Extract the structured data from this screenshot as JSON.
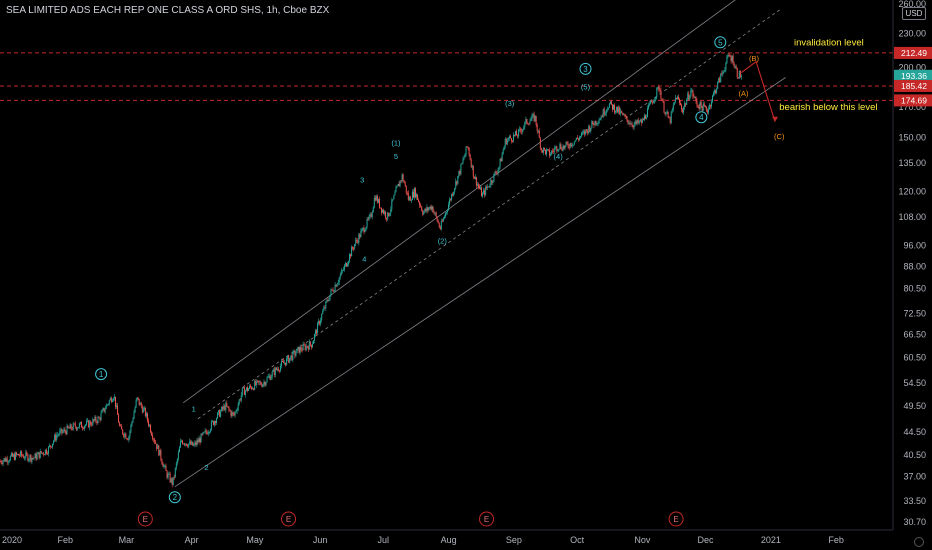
{
  "header": {
    "title": "SEA LIMITED ADS EACH REP ONE CLASS A ORD SHS, 1h, Cboe BZX"
  },
  "currency": "USD",
  "colors": {
    "background": "#000000",
    "candle_up": "#26a69a",
    "candle_down": "#ef5350",
    "wave_label": "#3fc6d6",
    "corrective_label": "#f7931a",
    "annotation": "#ffeb3b",
    "level_line": "#c62828",
    "channel": "#a0a4ad",
    "price_badge_current": "#26a69a",
    "price_badge_red": "#c62828"
  },
  "chart_data": {
    "type": "line",
    "title": "SEA LIMITED ADS EACH REP ONE CLASS A ORD SHS, 1h, Cboe BZX",
    "xlabel": "",
    "ylabel": "",
    "y_scale": "log",
    "ylim": [
      30.7,
      260.0
    ],
    "x_range": [
      "2020-01-01",
      "2021-02-28"
    ],
    "y_ticks": [
      "260.00",
      "230.00",
      "200.00",
      "170.00",
      "150.00",
      "135.00",
      "120.00",
      "108.00",
      "96.00",
      "88.00",
      "80.50",
      "72.50",
      "66.50",
      "60.50",
      "54.50",
      "49.50",
      "44.50",
      "40.50",
      "37.00",
      "33.50",
      "30.70"
    ],
    "x_ticks": [
      {
        "label": "2020",
        "date": "2020-01-01"
      },
      {
        "label": "Feb",
        "date": "2020-02-01"
      },
      {
        "label": "Mar",
        "date": "2020-03-01"
      },
      {
        "label": "Apr",
        "date": "2020-04-01"
      },
      {
        "label": "May",
        "date": "2020-05-01"
      },
      {
        "label": "Jun",
        "date": "2020-06-01"
      },
      {
        "label": "Jul",
        "date": "2020-07-01"
      },
      {
        "label": "Aug",
        "date": "2020-08-01"
      },
      {
        "label": "Sep",
        "date": "2020-09-01"
      },
      {
        "label": "Oct",
        "date": "2020-10-01"
      },
      {
        "label": "Nov",
        "date": "2020-11-01"
      },
      {
        "label": "Dec",
        "date": "2020-12-01"
      },
      {
        "label": "2021",
        "date": "2021-01-01"
      },
      {
        "label": "Feb",
        "date": "2021-02-01"
      }
    ],
    "series": [
      {
        "points": [
          [
            "2020-01-01",
            39.5
          ],
          [
            "2020-01-10",
            40.5
          ],
          [
            "2020-01-17",
            40.0
          ],
          [
            "2020-01-24",
            41.5
          ],
          [
            "2020-01-28",
            44.0
          ],
          [
            "2020-02-05",
            45.5
          ],
          [
            "2020-02-12",
            46.0
          ],
          [
            "2020-02-17",
            47.0
          ],
          [
            "2020-02-21",
            50.0
          ],
          [
            "2020-02-24",
            52.0
          ],
          [
            "2020-02-27",
            45.0
          ],
          [
            "2020-03-02",
            43.5
          ],
          [
            "2020-03-06",
            51.0
          ],
          [
            "2020-03-10",
            48.0
          ],
          [
            "2020-03-13",
            44.5
          ],
          [
            "2020-03-17",
            40.5
          ],
          [
            "2020-03-20",
            37.5
          ],
          [
            "2020-03-23",
            36.0
          ],
          [
            "2020-03-27",
            43.0
          ],
          [
            "2020-04-02",
            42.0
          ],
          [
            "2020-04-08",
            44.5
          ],
          [
            "2020-04-14",
            48.0
          ],
          [
            "2020-04-17",
            49.5
          ],
          [
            "2020-04-21",
            47.5
          ],
          [
            "2020-04-25",
            52.5
          ],
          [
            "2020-05-01",
            54.0
          ],
          [
            "2020-05-05",
            54.5
          ],
          [
            "2020-05-12",
            58.0
          ],
          [
            "2020-05-19",
            61.0
          ],
          [
            "2020-05-22",
            62.5
          ],
          [
            "2020-05-28",
            64.0
          ],
          [
            "2020-06-02",
            72.5
          ],
          [
            "2020-06-06",
            79.0
          ],
          [
            "2020-06-10",
            84.0
          ],
          [
            "2020-06-13",
            88.5
          ],
          [
            "2020-06-17",
            96.0
          ],
          [
            "2020-06-21",
            102.0
          ],
          [
            "2020-06-25",
            108.0
          ],
          [
            "2020-06-27",
            118.0
          ],
          [
            "2020-06-30",
            112.0
          ],
          [
            "2020-07-03",
            108.0
          ],
          [
            "2020-07-07",
            120.0
          ],
          [
            "2020-07-10",
            128.0
          ],
          [
            "2020-07-13",
            116.0
          ],
          [
            "2020-07-16",
            120.0
          ],
          [
            "2020-07-20",
            110.0
          ],
          [
            "2020-07-24",
            113.0
          ],
          [
            "2020-07-28",
            103.0
          ],
          [
            "2020-08-03",
            120.0
          ],
          [
            "2020-08-07",
            133.0
          ],
          [
            "2020-08-10",
            145.0
          ],
          [
            "2020-08-13",
            128.0
          ],
          [
            "2020-08-17",
            118.0
          ],
          [
            "2020-08-21",
            125.0
          ],
          [
            "2020-08-25",
            133.0
          ],
          [
            "2020-08-28",
            148.0
          ],
          [
            "2020-09-03",
            152.0
          ],
          [
            "2020-09-07",
            160.0
          ],
          [
            "2020-09-11",
            163.0
          ],
          [
            "2020-09-14",
            143.0
          ],
          [
            "2020-09-18",
            140.0
          ],
          [
            "2020-09-22",
            145.0
          ],
          [
            "2020-09-25",
            144.0
          ],
          [
            "2020-09-30",
            148.0
          ],
          [
            "2020-10-04",
            152.0
          ],
          [
            "2020-10-08",
            158.0
          ],
          [
            "2020-10-12",
            163.0
          ],
          [
            "2020-10-16",
            172.0
          ],
          [
            "2020-10-20",
            168.0
          ],
          [
            "2020-10-24",
            162.0
          ],
          [
            "2020-10-28",
            158.0
          ],
          [
            "2020-11-01",
            160.0
          ],
          [
            "2020-11-05",
            172.0
          ],
          [
            "2020-11-09",
            185.0
          ],
          [
            "2020-11-11",
            170.0
          ],
          [
            "2020-11-14",
            160.0
          ],
          [
            "2020-11-17",
            178.0
          ],
          [
            "2020-11-20",
            168.0
          ],
          [
            "2020-11-24",
            182.0
          ],
          [
            "2020-11-27",
            172.0
          ],
          [
            "2020-12-02",
            168.0
          ],
          [
            "2020-12-05",
            180.0
          ],
          [
            "2020-12-09",
            196.0
          ],
          [
            "2020-12-12",
            210.0
          ],
          [
            "2020-12-14",
            207.0
          ],
          [
            "2020-12-16",
            195.0
          ],
          [
            "2020-12-18",
            193.36
          ]
        ]
      }
    ],
    "price_levels": [
      {
        "value": 212.49,
        "label": "212.49",
        "style": "dashed-red",
        "badge": "red"
      },
      {
        "value": 193.36,
        "label": "193.36",
        "style": "none",
        "badge": "green"
      },
      {
        "value": 185.42,
        "label": "185.42",
        "style": "dashed-red",
        "badge": "red"
      },
      {
        "value": 174.69,
        "label": "174.69",
        "style": "dashed-red",
        "badge": "red"
      }
    ],
    "wave_labels": [
      {
        "text": "1",
        "date": "2020-02-18",
        "price": 56.5,
        "circled": true,
        "color": "cyan"
      },
      {
        "text": "2",
        "date": "2020-03-24",
        "price": 34.0,
        "circled": true,
        "color": "cyan"
      },
      {
        "text": "1",
        "date": "2020-04-02",
        "price": 49.0,
        "circled": false,
        "color": "cyan"
      },
      {
        "text": "2",
        "date": "2020-04-08",
        "price": 38.5,
        "circled": false,
        "color": "cyan"
      },
      {
        "text": "3",
        "date": "2020-06-21",
        "price": 126.0,
        "circled": false,
        "color": "cyan"
      },
      {
        "text": "4",
        "date": "2020-06-22",
        "price": 91.0,
        "circled": false,
        "color": "cyan"
      },
      {
        "text": "(1)",
        "date": "2020-07-07",
        "price": 147.0,
        "circled": false,
        "color": "cyan"
      },
      {
        "text": "5",
        "date": "2020-07-07",
        "price": 139.0,
        "circled": false,
        "color": "cyan"
      },
      {
        "text": "(2)",
        "date": "2020-07-29",
        "price": 98.0,
        "circled": false,
        "color": "cyan"
      },
      {
        "text": "(3)",
        "date": "2020-08-30",
        "price": 173.0,
        "circled": false,
        "color": "cyan"
      },
      {
        "text": "(4)",
        "date": "2020-09-22",
        "price": 139.0,
        "circled": false,
        "color": "cyan"
      },
      {
        "text": "3",
        "date": "2020-10-05",
        "price": 199.0,
        "circled": true,
        "color": "cyan"
      },
      {
        "text": "(5)",
        "date": "2020-10-05",
        "price": 185.0,
        "circled": false,
        "color": "cyan"
      },
      {
        "text": "4",
        "date": "2020-11-29",
        "price": 163.0,
        "circled": true,
        "color": "cyan"
      },
      {
        "text": "5",
        "date": "2020-12-08",
        "price": 222.0,
        "circled": true,
        "color": "cyan"
      },
      {
        "text": "(B)",
        "date": "2020-12-24",
        "price": 208.0,
        "circled": false,
        "color": "orange"
      },
      {
        "text": "(A)",
        "date": "2020-12-19",
        "price": 180.0,
        "circled": false,
        "color": "orange"
      },
      {
        "text": "(C)",
        "date": "2021-01-05",
        "price": 151.0,
        "circled": false,
        "color": "orange"
      }
    ],
    "annotations": [
      {
        "text": "invalidation level",
        "date": "2021-01-12",
        "price": 219.0
      },
      {
        "text": "bearish below this level",
        "date": "2021-01-05",
        "price": 168.0
      }
    ],
    "earnings_markers": [
      "2020-03-10",
      "2020-05-17",
      "2020-08-19",
      "2020-11-17"
    ],
    "earnings_label": "E",
    "forecast_path": [
      [
        "2020-12-18",
        196.0
      ],
      [
        "2020-12-25",
        205.0
      ],
      [
        "2021-01-03",
        160.0
      ]
    ]
  }
}
